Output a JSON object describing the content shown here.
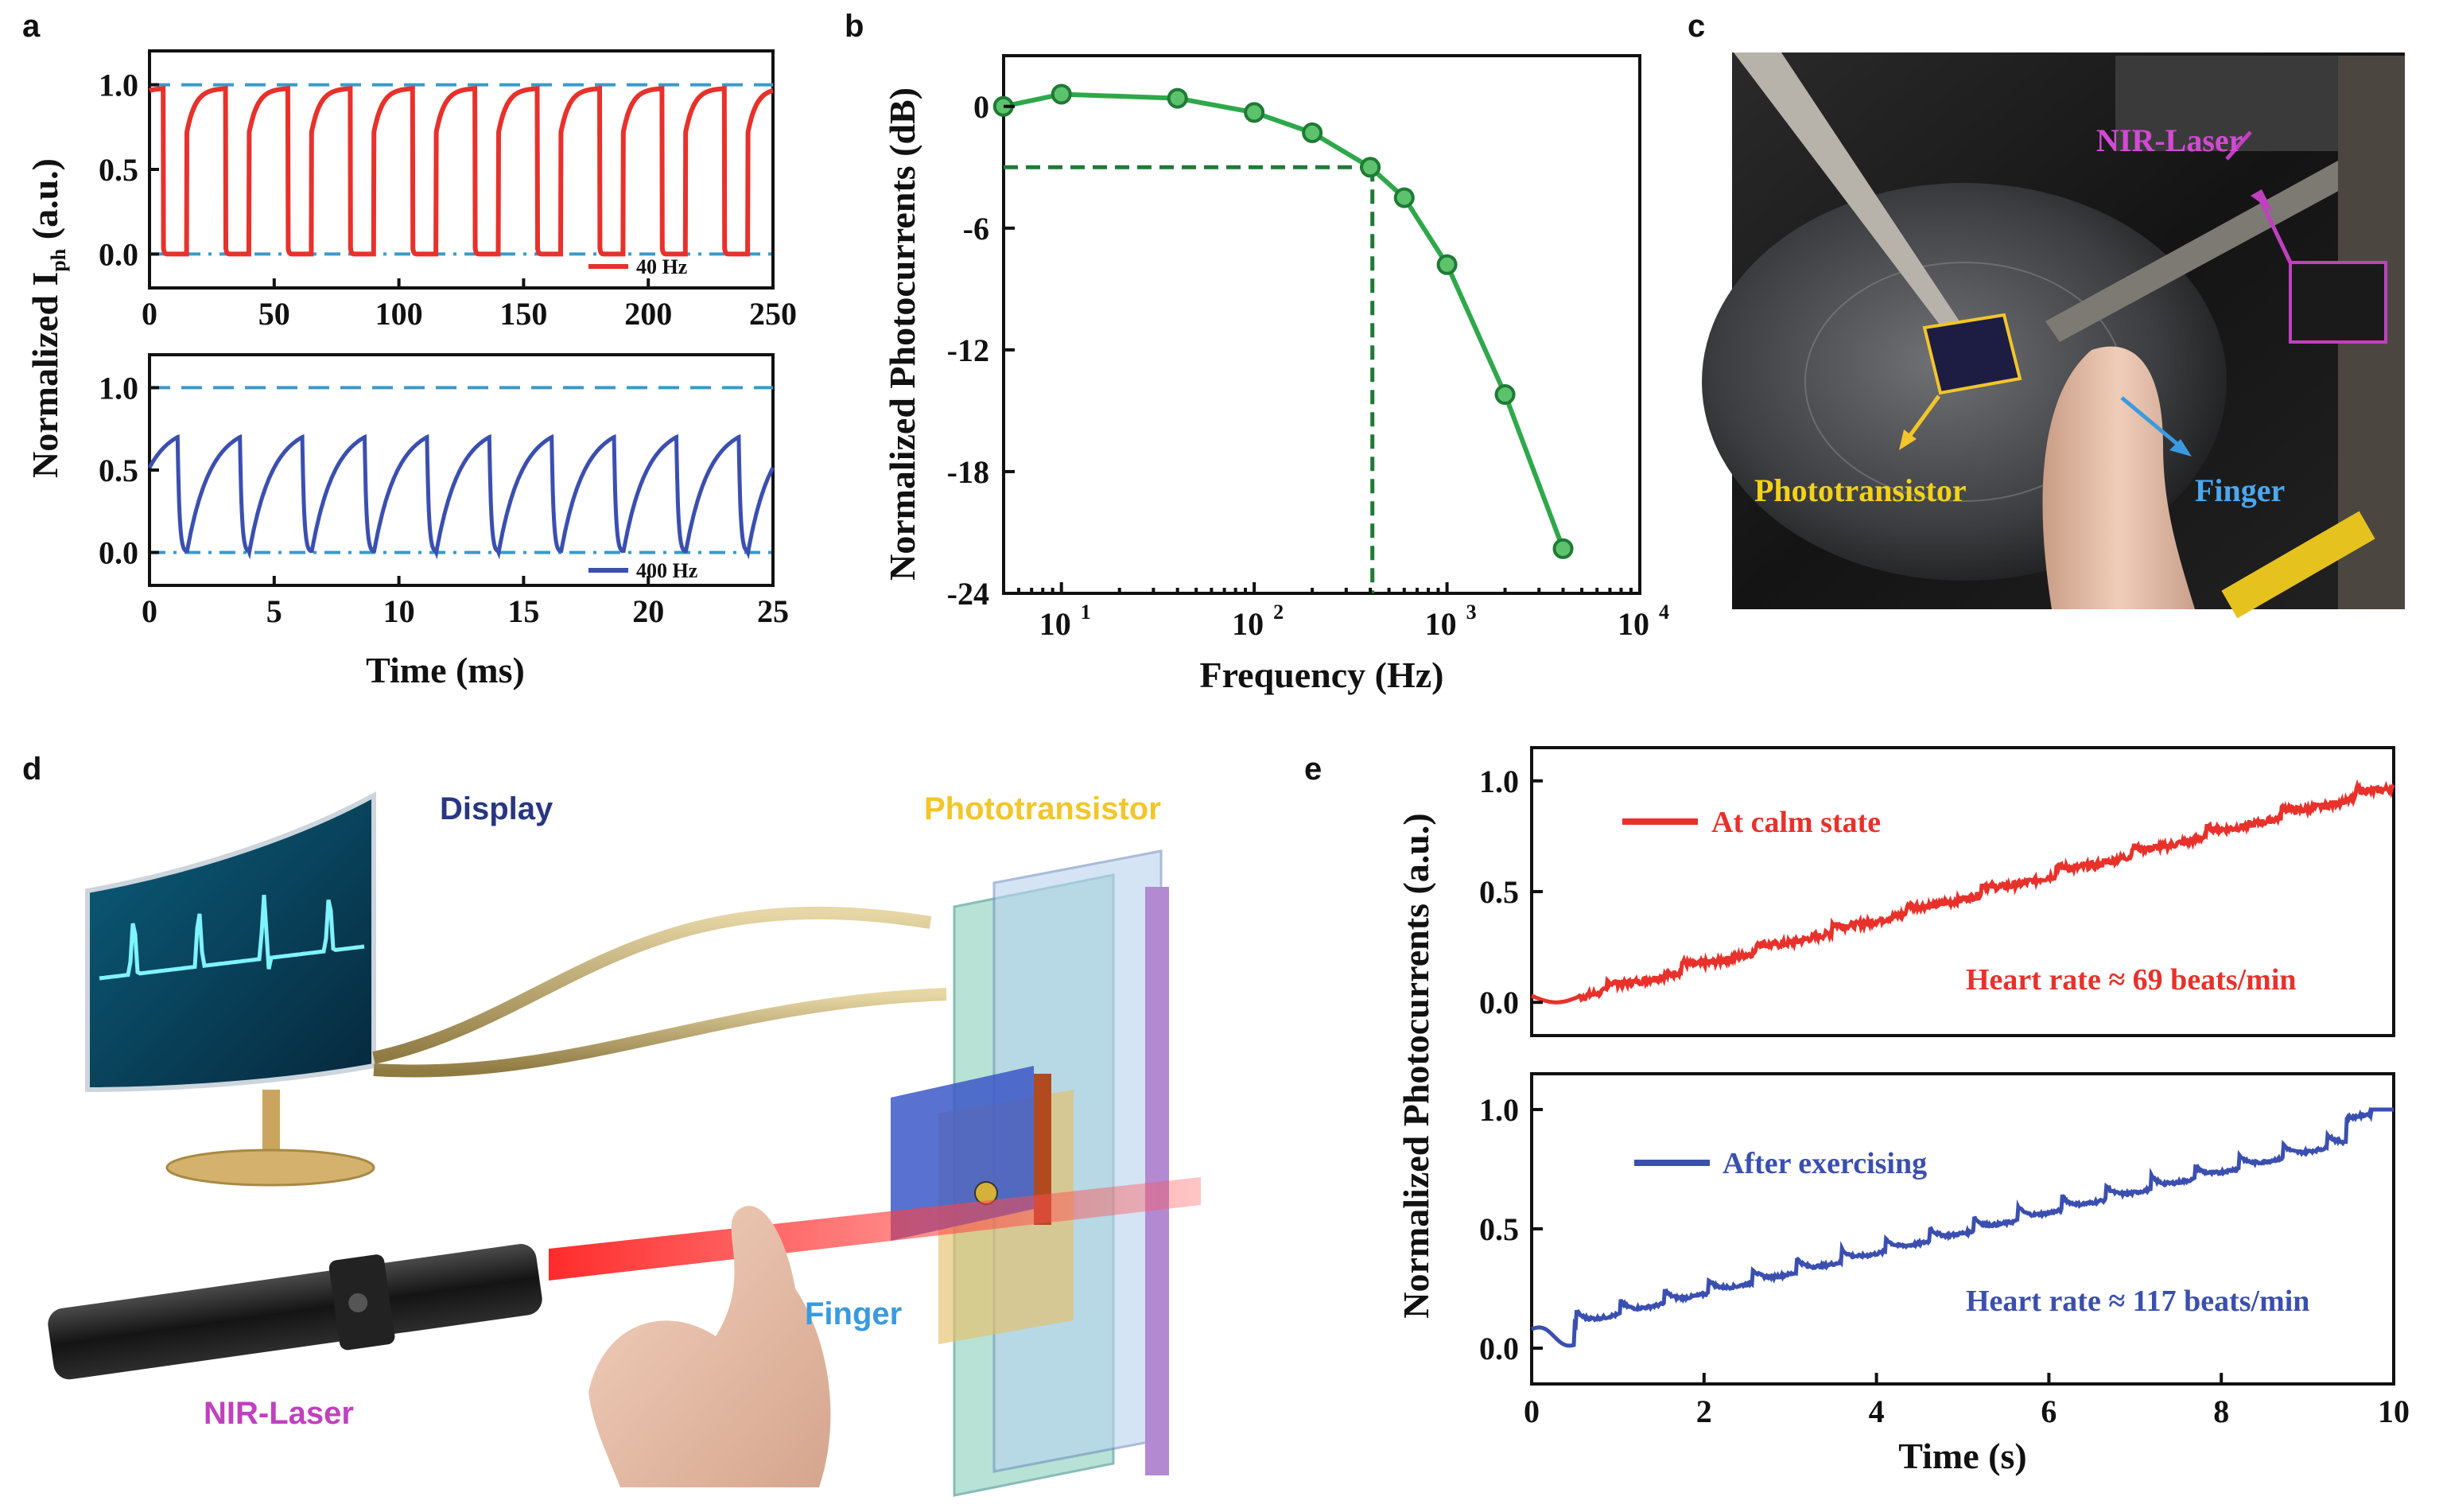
{
  "chart_data": [
    {
      "panel": "a",
      "type": "line",
      "subplots": [
        {
          "name": "top",
          "xlim": [
            0,
            250
          ],
          "ylim": [
            -0.2,
            1.2
          ],
          "xticks": [
            "0",
            "50",
            "100",
            "150",
            "200",
            "250"
          ],
          "yticks": [
            "0.0",
            "0.5",
            "1.0"
          ],
          "frequency_hz": 40,
          "period": 25,
          "cycles_start": 0,
          "rise_from": 0.72,
          "peak": 0.98,
          "low": 0.0,
          "reference_lines": [
            1.0,
            0.0
          ],
          "series": [
            {
              "name": "40 Hz",
              "color": "#e8312b"
            }
          ]
        },
        {
          "name": "bottom",
          "xlim": [
            0,
            25
          ],
          "ylim": [
            -0.2,
            1.2
          ],
          "xticks": [
            "0",
            "5",
            "10",
            "15",
            "20",
            "25"
          ],
          "yticks": [
            "0.0",
            "0.5",
            "1.0"
          ],
          "frequency_hz": 400,
          "period": 2.5,
          "peak": 0.7,
          "low": 0.0,
          "reference_lines": [
            1.0,
            0.0
          ],
          "series": [
            {
              "name": "400 Hz",
              "color": "#3b4fb0"
            }
          ]
        }
      ],
      "ylabel_main": "Normalized I",
      "ylabel_sub": "ph",
      "ylabel_tail": " (a.u.)",
      "xlabel": "Time (ms)"
    },
    {
      "panel": "b",
      "type": "line",
      "xscale": "log",
      "xlim_log10": [
        0.7,
        4
      ],
      "ylim": [
        -24,
        2.5
      ],
      "xticks": [
        {
          "base": "10",
          "exp": "1"
        },
        {
          "base": "10",
          "exp": "2"
        },
        {
          "base": "10",
          "exp": "3"
        },
        {
          "base": "10",
          "exp": "4"
        }
      ],
      "yticks": [
        "0",
        "-6",
        "-12",
        "-18",
        "-24"
      ],
      "ytick_values": [
        0,
        -6,
        -12,
        -18,
        -24
      ],
      "x": [
        5,
        10,
        40,
        100,
        200,
        400,
        600,
        1000,
        2000,
        4000
      ],
      "y": [
        0.0,
        0.6,
        0.4,
        -0.3,
        -1.3,
        -3.0,
        -4.5,
        -7.8,
        -14.2,
        -21.8
      ],
      "cutoff_x": 410,
      "cutoff_y": -3.0,
      "color": "#2ea84a",
      "xlabel": "Frequency (Hz)",
      "ylabel": "Normalized Photocurrents (dB)"
    },
    {
      "panel": "e",
      "type": "line",
      "xlim": [
        0,
        10
      ],
      "ylim": [
        -0.15,
        1.15
      ],
      "xticks": [
        "0",
        "2",
        "4",
        "6",
        "8",
        "10"
      ],
      "yticks": [
        "0.0",
        "0.5",
        "1.0"
      ],
      "xlabel": "Time (s)",
      "ylabel": "Normalized Photocurrents (a.u.)",
      "series": [
        {
          "name": "At calm state",
          "color": "#e8312b",
          "heart_rate_bpm": 69,
          "annotation": "Heart rate ≈ 69 beats/min"
        },
        {
          "name": "After exercising",
          "color": "#3b4fb0",
          "heart_rate_bpm": 117,
          "annotation": "Heart rate ≈ 117 beats/min"
        }
      ]
    }
  ],
  "panels": {
    "a": "a",
    "b": "b",
    "c": "c",
    "d": "d",
    "e": "e"
  },
  "photo_c": {
    "labels": {
      "laser": "NIR-Laser",
      "phototransistor": "Phototransistor",
      "finger": "Finger"
    }
  },
  "illustration_d": {
    "labels": {
      "display": "Display",
      "phototransistor": "Phototransistor",
      "finger": "Finger",
      "laser": "NIR-Laser"
    }
  },
  "colors": {
    "red": "#e8312b",
    "blue": "#3b4fb0",
    "green": "#2ea84a",
    "dash": "#3a9ac9",
    "purple": "#c040c0",
    "yellow": "#f2c62a",
    "navy": "#283780"
  }
}
